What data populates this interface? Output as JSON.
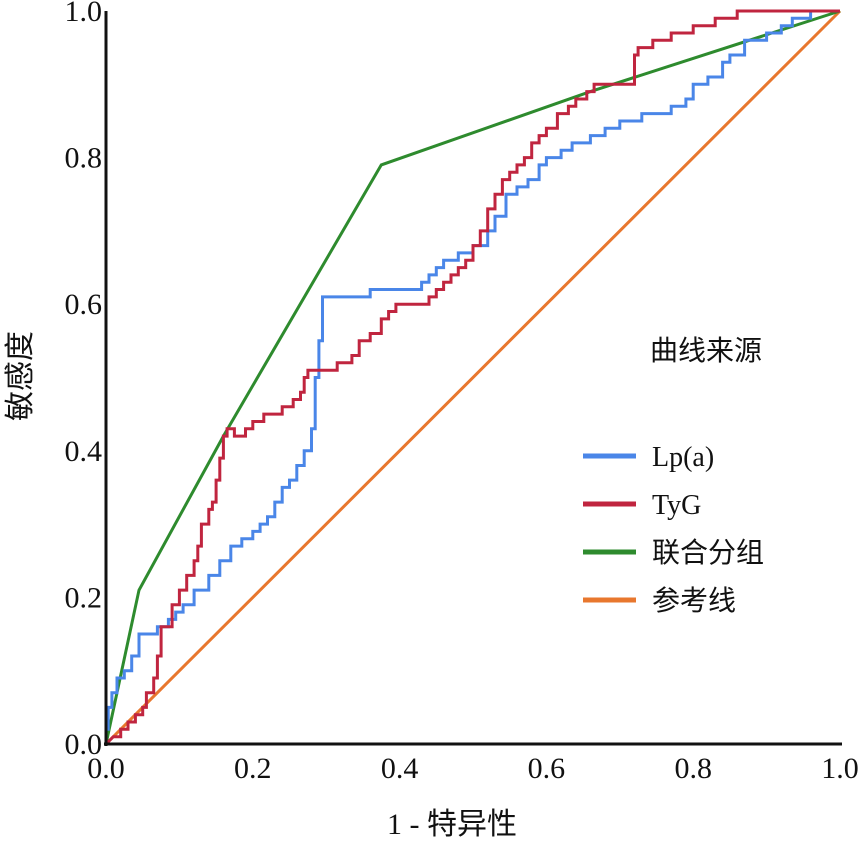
{
  "chart_data": {
    "type": "line",
    "title": "",
    "xlabel": "1 - 特异性",
    "ylabel": "敏感度",
    "xlim": [
      0,
      1
    ],
    "ylim": [
      0,
      1
    ],
    "x_ticks": [
      "0.0",
      "0.2",
      "0.4",
      "0.6",
      "0.8",
      "1.0"
    ],
    "y_ticks": [
      "0.0",
      "0.2",
      "0.4",
      "0.6",
      "0.8",
      "1.0"
    ],
    "grid": false,
    "legend": {
      "title": "曲线来源",
      "position": "right"
    },
    "series": [
      {
        "name": "Lp(a)",
        "color": "#4a86e8",
        "points": [
          [
            0,
            0
          ],
          [
            0,
            0.02
          ],
          [
            0.003,
            0.02
          ],
          [
            0.003,
            0.05
          ],
          [
            0.008,
            0.05
          ],
          [
            0.008,
            0.07
          ],
          [
            0.015,
            0.07
          ],
          [
            0.015,
            0.09
          ],
          [
            0.025,
            0.09
          ],
          [
            0.025,
            0.1
          ],
          [
            0.035,
            0.1
          ],
          [
            0.035,
            0.12
          ],
          [
            0.045,
            0.12
          ],
          [
            0.045,
            0.15
          ],
          [
            0.07,
            0.15
          ],
          [
            0.07,
            0.16
          ],
          [
            0.085,
            0.16
          ],
          [
            0.085,
            0.17
          ],
          [
            0.095,
            0.17
          ],
          [
            0.095,
            0.18
          ],
          [
            0.105,
            0.18
          ],
          [
            0.105,
            0.19
          ],
          [
            0.12,
            0.19
          ],
          [
            0.12,
            0.21
          ],
          [
            0.14,
            0.21
          ],
          [
            0.14,
            0.23
          ],
          [
            0.155,
            0.23
          ],
          [
            0.155,
            0.25
          ],
          [
            0.17,
            0.25
          ],
          [
            0.17,
            0.27
          ],
          [
            0.185,
            0.27
          ],
          [
            0.185,
            0.28
          ],
          [
            0.2,
            0.28
          ],
          [
            0.2,
            0.29
          ],
          [
            0.21,
            0.29
          ],
          [
            0.21,
            0.3
          ],
          [
            0.22,
            0.3
          ],
          [
            0.22,
            0.31
          ],
          [
            0.23,
            0.31
          ],
          [
            0.23,
            0.33
          ],
          [
            0.24,
            0.33
          ],
          [
            0.24,
            0.35
          ],
          [
            0.25,
            0.35
          ],
          [
            0.25,
            0.36
          ],
          [
            0.26,
            0.36
          ],
          [
            0.26,
            0.38
          ],
          [
            0.27,
            0.38
          ],
          [
            0.27,
            0.4
          ],
          [
            0.28,
            0.4
          ],
          [
            0.28,
            0.43
          ],
          [
            0.285,
            0.43
          ],
          [
            0.285,
            0.5
          ],
          [
            0.29,
            0.5
          ],
          [
            0.29,
            0.55
          ],
          [
            0.295,
            0.55
          ],
          [
            0.295,
            0.61
          ],
          [
            0.36,
            0.61
          ],
          [
            0.36,
            0.62
          ],
          [
            0.43,
            0.62
          ],
          [
            0.43,
            0.63
          ],
          [
            0.44,
            0.63
          ],
          [
            0.44,
            0.64
          ],
          [
            0.45,
            0.64
          ],
          [
            0.45,
            0.65
          ],
          [
            0.46,
            0.65
          ],
          [
            0.46,
            0.66
          ],
          [
            0.48,
            0.66
          ],
          [
            0.48,
            0.67
          ],
          [
            0.5,
            0.67
          ],
          [
            0.5,
            0.68
          ],
          [
            0.52,
            0.68
          ],
          [
            0.52,
            0.7
          ],
          [
            0.53,
            0.7
          ],
          [
            0.53,
            0.72
          ],
          [
            0.545,
            0.72
          ],
          [
            0.545,
            0.75
          ],
          [
            0.56,
            0.75
          ],
          [
            0.56,
            0.76
          ],
          [
            0.575,
            0.76
          ],
          [
            0.575,
            0.77
          ],
          [
            0.59,
            0.77
          ],
          [
            0.59,
            0.79
          ],
          [
            0.6,
            0.79
          ],
          [
            0.6,
            0.8
          ],
          [
            0.62,
            0.8
          ],
          [
            0.62,
            0.81
          ],
          [
            0.635,
            0.81
          ],
          [
            0.635,
            0.82
          ],
          [
            0.66,
            0.82
          ],
          [
            0.66,
            0.83
          ],
          [
            0.68,
            0.83
          ],
          [
            0.68,
            0.84
          ],
          [
            0.7,
            0.84
          ],
          [
            0.7,
            0.85
          ],
          [
            0.73,
            0.85
          ],
          [
            0.73,
            0.86
          ],
          [
            0.77,
            0.86
          ],
          [
            0.77,
            0.87
          ],
          [
            0.79,
            0.87
          ],
          [
            0.79,
            0.88
          ],
          [
            0.8,
            0.88
          ],
          [
            0.8,
            0.9
          ],
          [
            0.82,
            0.9
          ],
          [
            0.82,
            0.91
          ],
          [
            0.84,
            0.91
          ],
          [
            0.84,
            0.93
          ],
          [
            0.85,
            0.93
          ],
          [
            0.85,
            0.94
          ],
          [
            0.87,
            0.94
          ],
          [
            0.87,
            0.96
          ],
          [
            0.9,
            0.96
          ],
          [
            0.9,
            0.97
          ],
          [
            0.92,
            0.97
          ],
          [
            0.92,
            0.98
          ],
          [
            0.935,
            0.98
          ],
          [
            0.935,
            0.99
          ],
          [
            0.96,
            0.99
          ],
          [
            0.96,
            1.0
          ],
          [
            1.0,
            1.0
          ]
        ]
      },
      {
        "name": "TyG",
        "color": "#c0253f",
        "points": [
          [
            0,
            0
          ],
          [
            0.01,
            0.01
          ],
          [
            0.02,
            0.01
          ],
          [
            0.02,
            0.02
          ],
          [
            0.03,
            0.02
          ],
          [
            0.03,
            0.03
          ],
          [
            0.04,
            0.03
          ],
          [
            0.04,
            0.04
          ],
          [
            0.05,
            0.04
          ],
          [
            0.05,
            0.05
          ],
          [
            0.055,
            0.05
          ],
          [
            0.055,
            0.07
          ],
          [
            0.065,
            0.07
          ],
          [
            0.065,
            0.09
          ],
          [
            0.07,
            0.09
          ],
          [
            0.07,
            0.12
          ],
          [
            0.075,
            0.12
          ],
          [
            0.075,
            0.16
          ],
          [
            0.09,
            0.16
          ],
          [
            0.09,
            0.19
          ],
          [
            0.1,
            0.19
          ],
          [
            0.1,
            0.21
          ],
          [
            0.11,
            0.21
          ],
          [
            0.11,
            0.23
          ],
          [
            0.12,
            0.23
          ],
          [
            0.12,
            0.25
          ],
          [
            0.125,
            0.25
          ],
          [
            0.125,
            0.27
          ],
          [
            0.13,
            0.27
          ],
          [
            0.13,
            0.3
          ],
          [
            0.14,
            0.3
          ],
          [
            0.14,
            0.32
          ],
          [
            0.145,
            0.32
          ],
          [
            0.145,
            0.33
          ],
          [
            0.15,
            0.33
          ],
          [
            0.15,
            0.36
          ],
          [
            0.155,
            0.36
          ],
          [
            0.155,
            0.39
          ],
          [
            0.16,
            0.39
          ],
          [
            0.16,
            0.42
          ],
          [
            0.165,
            0.42
          ],
          [
            0.165,
            0.43
          ],
          [
            0.175,
            0.43
          ],
          [
            0.175,
            0.42
          ],
          [
            0.19,
            0.42
          ],
          [
            0.19,
            0.43
          ],
          [
            0.2,
            0.43
          ],
          [
            0.2,
            0.44
          ],
          [
            0.215,
            0.44
          ],
          [
            0.215,
            0.45
          ],
          [
            0.24,
            0.45
          ],
          [
            0.24,
            0.46
          ],
          [
            0.255,
            0.46
          ],
          [
            0.255,
            0.47
          ],
          [
            0.265,
            0.47
          ],
          [
            0.265,
            0.48
          ],
          [
            0.27,
            0.48
          ],
          [
            0.27,
            0.5
          ],
          [
            0.275,
            0.5
          ],
          [
            0.275,
            0.51
          ],
          [
            0.315,
            0.51
          ],
          [
            0.315,
            0.52
          ],
          [
            0.335,
            0.52
          ],
          [
            0.335,
            0.53
          ],
          [
            0.345,
            0.53
          ],
          [
            0.345,
            0.55
          ],
          [
            0.36,
            0.55
          ],
          [
            0.36,
            0.56
          ],
          [
            0.375,
            0.56
          ],
          [
            0.375,
            0.58
          ],
          [
            0.385,
            0.58
          ],
          [
            0.385,
            0.59
          ],
          [
            0.395,
            0.59
          ],
          [
            0.395,
            0.6
          ],
          [
            0.44,
            0.6
          ],
          [
            0.44,
            0.61
          ],
          [
            0.45,
            0.61
          ],
          [
            0.45,
            0.62
          ],
          [
            0.46,
            0.62
          ],
          [
            0.46,
            0.63
          ],
          [
            0.47,
            0.63
          ],
          [
            0.47,
            0.64
          ],
          [
            0.48,
            0.64
          ],
          [
            0.48,
            0.65
          ],
          [
            0.49,
            0.65
          ],
          [
            0.49,
            0.66
          ],
          [
            0.5,
            0.66
          ],
          [
            0.5,
            0.68
          ],
          [
            0.51,
            0.68
          ],
          [
            0.51,
            0.7
          ],
          [
            0.52,
            0.7
          ],
          [
            0.52,
            0.73
          ],
          [
            0.53,
            0.73
          ],
          [
            0.53,
            0.75
          ],
          [
            0.54,
            0.75
          ],
          [
            0.54,
            0.77
          ],
          [
            0.55,
            0.77
          ],
          [
            0.55,
            0.78
          ],
          [
            0.56,
            0.78
          ],
          [
            0.56,
            0.79
          ],
          [
            0.57,
            0.79
          ],
          [
            0.57,
            0.8
          ],
          [
            0.58,
            0.8
          ],
          [
            0.58,
            0.82
          ],
          [
            0.59,
            0.82
          ],
          [
            0.59,
            0.83
          ],
          [
            0.6,
            0.83
          ],
          [
            0.6,
            0.84
          ],
          [
            0.615,
            0.84
          ],
          [
            0.615,
            0.86
          ],
          [
            0.63,
            0.86
          ],
          [
            0.63,
            0.87
          ],
          [
            0.64,
            0.87
          ],
          [
            0.64,
            0.88
          ],
          [
            0.655,
            0.88
          ],
          [
            0.655,
            0.89
          ],
          [
            0.665,
            0.89
          ],
          [
            0.665,
            0.9
          ],
          [
            0.72,
            0.9
          ],
          [
            0.72,
            0.94
          ],
          [
            0.725,
            0.94
          ],
          [
            0.725,
            0.95
          ],
          [
            0.745,
            0.95
          ],
          [
            0.745,
            0.96
          ],
          [
            0.77,
            0.96
          ],
          [
            0.77,
            0.97
          ],
          [
            0.8,
            0.97
          ],
          [
            0.8,
            0.98
          ],
          [
            0.83,
            0.98
          ],
          [
            0.83,
            0.99
          ],
          [
            0.86,
            0.99
          ],
          [
            0.86,
            1.0
          ],
          [
            1.0,
            1.0
          ]
        ]
      },
      {
        "name": "联合分组",
        "color": "#2e8b2e",
        "points": [
          [
            0,
            0
          ],
          [
            0.045,
            0.21
          ],
          [
            0.16,
            0.42
          ],
          [
            0.375,
            0.79
          ],
          [
            0.66,
            0.89
          ],
          [
            1.0,
            1.0
          ]
        ]
      },
      {
        "name": "参考线",
        "color": "#e8772e",
        "points": [
          [
            0,
            0
          ],
          [
            1,
            1
          ]
        ]
      }
    ]
  }
}
